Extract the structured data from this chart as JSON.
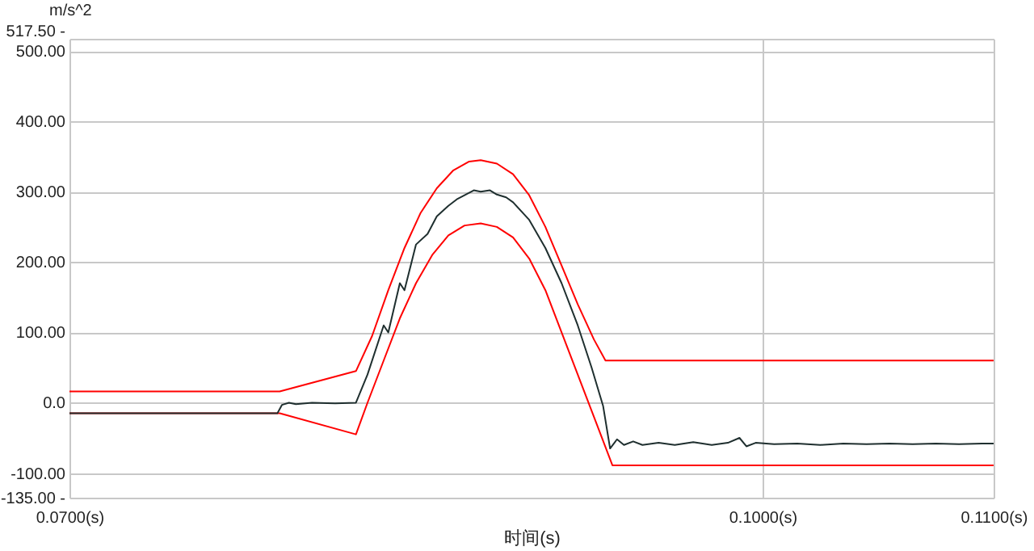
{
  "chart_data": {
    "type": "line",
    "xlabel": "时间(s)",
    "ylabel": "m/s^2",
    "xlim": [
      0.07,
      0.11
    ],
    "ylim": [
      -135,
      517.5
    ],
    "xticks": [
      {
        "value": 0.07,
        "label": "0.0700(s)"
      },
      {
        "value": 0.1,
        "label": "0.1000(s)"
      },
      {
        "value": 0.11,
        "label": "0.1100(s)"
      }
    ],
    "yticks": [
      {
        "value": 517.5,
        "label": "517.50 -"
      },
      {
        "value": 500,
        "label": "500.00"
      },
      {
        "value": 400,
        "label": "400.00"
      },
      {
        "value": 300,
        "label": "300.00"
      },
      {
        "value": 200,
        "label": "200.00"
      },
      {
        "value": 100,
        "label": "100.00"
      },
      {
        "value": 0,
        "label": "0.0"
      },
      {
        "value": -100,
        "label": "-100.00"
      },
      {
        "value": -135,
        "label": "-135.00 -"
      }
    ],
    "grid": true,
    "line_style": "solid",
    "marker": "none",
    "series": [
      {
        "color": "#ff0000",
        "x": [
          0.07,
          0.0791,
          0.0824,
          0.0831,
          0.0838,
          0.0845,
          0.0852,
          0.0859,
          0.0866,
          0.0873,
          0.0878,
          0.0885,
          0.0892,
          0.0899,
          0.0906,
          0.0913,
          0.092,
          0.0927,
          0.0932,
          0.11
        ],
        "values": [
          16,
          16,
          45,
          95,
          160,
          220,
          270,
          305,
          330,
          343,
          345,
          340,
          325,
          295,
          250,
          195,
          140,
          90,
          60,
          60
        ]
      },
      {
        "color": "#ff0000",
        "x": [
          0.07,
          0.0791,
          0.0824,
          0.0829,
          0.0836,
          0.0843,
          0.085,
          0.0857,
          0.0864,
          0.0871,
          0.0878,
          0.0885,
          0.0892,
          0.0899,
          0.0906,
          0.0913,
          0.092,
          0.0927,
          0.0935,
          0.11
        ],
        "values": [
          -15,
          -15,
          -45,
          0,
          60,
          120,
          170,
          210,
          238,
          252,
          255,
          250,
          235,
          205,
          160,
          100,
          40,
          -20,
          -89,
          -89
        ]
      },
      {
        "color": "#1f2f2f",
        "x": [
          0.07,
          0.079,
          0.0792,
          0.0795,
          0.0798,
          0.0805,
          0.0815,
          0.0824,
          0.0829,
          0.0836,
          0.0838,
          0.0843,
          0.0845,
          0.085,
          0.0855,
          0.0859,
          0.0864,
          0.0868,
          0.0871,
          0.0875,
          0.0878,
          0.0882,
          0.0885,
          0.0889,
          0.0892,
          0.0899,
          0.0906,
          0.0913,
          0.092,
          0.0926,
          0.0931,
          0.0934,
          0.0937,
          0.094,
          0.0944,
          0.0948,
          0.0955,
          0.0962,
          0.097,
          0.0978,
          0.0985,
          0.099,
          0.0993,
          0.0997,
          0.1005,
          0.1015,
          0.1025,
          0.1035,
          0.1045,
          0.1055,
          0.1065,
          0.1075,
          0.1085,
          0.1095,
          0.11
        ],
        "values": [
          -15,
          -15,
          -3,
          0,
          -2,
          0,
          -1,
          0,
          40,
          110,
          100,
          170,
          160,
          225,
          240,
          265,
          280,
          290,
          295,
          302,
          300,
          302,
          296,
          292,
          285,
          260,
          220,
          170,
          110,
          50,
          -5,
          -65,
          -52,
          -60,
          -55,
          -60,
          -57,
          -60,
          -56,
          -60,
          -57,
          -50,
          -62,
          -57,
          -59,
          -58,
          -60,
          -58,
          -59,
          -58,
          -59,
          -58,
          -59,
          -58,
          -58
        ]
      }
    ]
  }
}
